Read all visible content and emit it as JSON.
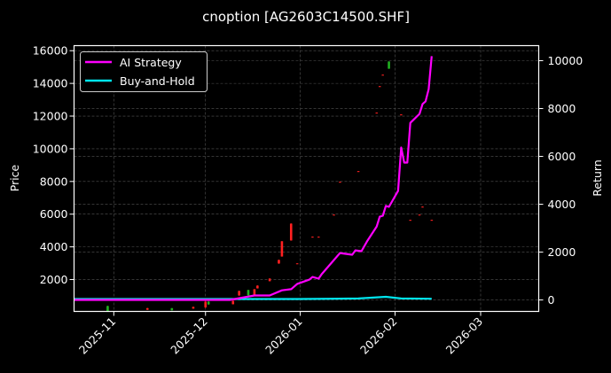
{
  "chart_data": {
    "type": "line",
    "title": "cnoption [AG2603C14500.SHF]",
    "ylabel_left": "Price",
    "ylabel_right": "Return",
    "xlim": [
      "2025-10-19",
      "2026-03-20"
    ],
    "ylim_left": [
      50,
      16310
    ],
    "ylim_right": [
      -480,
      10630
    ],
    "x_ticks": [
      "2025-11-01",
      "2025-12-01",
      "2026-01-01",
      "2026-02-01",
      "2026-03-01"
    ],
    "x_tick_labels": [
      "2025-11",
      "2025-12",
      "2026-01",
      "2026-02",
      "2026-03"
    ],
    "y_ticks_left": [
      2000,
      4000,
      6000,
      8000,
      10000,
      12000,
      14000,
      16000
    ],
    "y_ticks_right": [
      0,
      2000,
      4000,
      6000,
      8000,
      10000
    ],
    "grid": true,
    "legend_placement": "top-left",
    "colors": {
      "background": "#000000",
      "up": "#ff2020",
      "down": "#20b020",
      "ai": "#ff00ff",
      "bh": "#00e5ee",
      "grid": "#555555"
    },
    "series": [
      {
        "name": "AI Strategy",
        "axis": "right",
        "points": [
          [
            "2025-10-19",
            0
          ],
          [
            "2025-12-09",
            0
          ],
          [
            "2025-12-17",
            185
          ],
          [
            "2025-12-22",
            185
          ],
          [
            "2025-12-26",
            400
          ],
          [
            "2025-12-29",
            450
          ],
          [
            "2025-12-31",
            670
          ],
          [
            "2026-01-04",
            850
          ],
          [
            "2026-01-05",
            960
          ],
          [
            "2026-01-07",
            890
          ],
          [
            "2026-01-08",
            1075
          ],
          [
            "2026-01-14",
            1960
          ],
          [
            "2026-01-18",
            1890
          ],
          [
            "2026-01-19",
            2070
          ],
          [
            "2026-01-21",
            2040
          ],
          [
            "2026-01-23",
            2480
          ],
          [
            "2026-01-26",
            3070
          ],
          [
            "2026-01-27",
            3480
          ],
          [
            "2026-01-28",
            3520
          ],
          [
            "2026-01-29",
            3930
          ],
          [
            "2026-01-30",
            3890
          ],
          [
            "2026-02-02",
            4560
          ],
          [
            "2026-02-03",
            6370
          ],
          [
            "2026-02-04",
            5740
          ],
          [
            "2026-02-05",
            5740
          ],
          [
            "2026-02-06",
            7400
          ],
          [
            "2026-02-09",
            7780
          ],
          [
            "2026-02-10",
            8190
          ],
          [
            "2026-02-11",
            8300
          ],
          [
            "2026-02-12",
            8810
          ],
          [
            "2026-02-13",
            10190
          ]
        ]
      },
      {
        "name": "Buy-and-Hold",
        "axis": "right",
        "points": [
          [
            "2025-10-19",
            40
          ],
          [
            "2025-12-31",
            40
          ],
          [
            "2026-01-20",
            60
          ],
          [
            "2026-01-29",
            130
          ],
          [
            "2026-02-03",
            60
          ],
          [
            "2026-02-13",
            50
          ]
        ]
      }
    ],
    "candles": [
      {
        "date": "2025-10-30",
        "open": 380,
        "close": 60,
        "high": 400,
        "low": 50
      },
      {
        "date": "2025-11-12",
        "open": 150,
        "close": 250,
        "high": 270,
        "low": 140
      },
      {
        "date": "2025-11-20",
        "open": 250,
        "close": 120,
        "high": 260,
        "low": 100
      },
      {
        "date": "2025-11-27",
        "open": 220,
        "close": 330,
        "high": 340,
        "low": 210
      },
      {
        "date": "2025-12-01",
        "open": 300,
        "close": 650,
        "high": 700,
        "low": 250
      },
      {
        "date": "2025-12-02",
        "open": 650,
        "close": 480,
        "high": 700,
        "low": 450
      },
      {
        "date": "2025-12-10",
        "open": 490,
        "close": 700,
        "high": 720,
        "low": 480
      },
      {
        "date": "2025-12-12",
        "open": 1030,
        "close": 1300,
        "high": 1320,
        "low": 1000
      },
      {
        "date": "2025-12-15",
        "open": 1360,
        "close": 1030,
        "high": 1380,
        "low": 1000
      },
      {
        "date": "2025-12-17",
        "open": 1030,
        "close": 1410,
        "high": 1420,
        "low": 1020
      },
      {
        "date": "2025-12-18",
        "open": 1460,
        "close": 1630,
        "high": 1650,
        "low": 1450
      },
      {
        "date": "2025-12-22",
        "open": 1900,
        "close": 2060,
        "high": 2080,
        "low": 1890
      },
      {
        "date": "2025-12-25",
        "open": 2980,
        "close": 3200,
        "high": 3220,
        "low": 2960
      },
      {
        "date": "2025-12-26",
        "open": 3410,
        "close": 4340,
        "high": 4360,
        "low": 3400
      },
      {
        "date": "2025-12-29",
        "open": 4390,
        "close": 5420,
        "high": 5440,
        "low": 4380
      },
      {
        "date": "2025-12-31",
        "open": 2970,
        "close": 2990,
        "high": 3000,
        "low": 2960
      },
      {
        "date": "2026-01-05",
        "open": 4600,
        "close": 4620,
        "high": 4630,
        "low": 4590
      },
      {
        "date": "2026-01-07",
        "open": 4600,
        "close": 4620,
        "high": 4630,
        "low": 4590
      },
      {
        "date": "2026-01-12",
        "open": 5950,
        "close": 5970,
        "high": 5980,
        "low": 5940
      },
      {
        "date": "2026-01-14",
        "open": 7960,
        "close": 7980,
        "high": 7990,
        "low": 7950
      },
      {
        "date": "2026-01-20",
        "open": 8610,
        "close": 8630,
        "high": 8640,
        "low": 8600
      },
      {
        "date": "2026-01-26",
        "open": 12190,
        "close": 12210,
        "high": 12220,
        "low": 12180
      },
      {
        "date": "2026-01-27",
        "open": 13810,
        "close": 13830,
        "high": 13840,
        "low": 13800
      },
      {
        "date": "2026-01-28",
        "open": 14510,
        "close": 14530,
        "high": 14540,
        "low": 14500
      },
      {
        "date": "2026-01-30",
        "open": 15340,
        "close": 14900,
        "high": 15350,
        "low": 14890
      },
      {
        "date": "2026-02-03",
        "open": 12080,
        "close": 12100,
        "high": 12110,
        "low": 12070
      },
      {
        "date": "2026-02-06",
        "open": 5630,
        "close": 5650,
        "high": 5660,
        "low": 5620
      },
      {
        "date": "2026-02-09",
        "open": 5950,
        "close": 5970,
        "high": 5980,
        "low": 5940
      },
      {
        "date": "2026-02-10",
        "open": 6440,
        "close": 6460,
        "high": 6470,
        "low": 6430
      },
      {
        "date": "2026-02-13",
        "open": 5630,
        "close": 5650,
        "high": 5660,
        "low": 5620
      }
    ]
  }
}
